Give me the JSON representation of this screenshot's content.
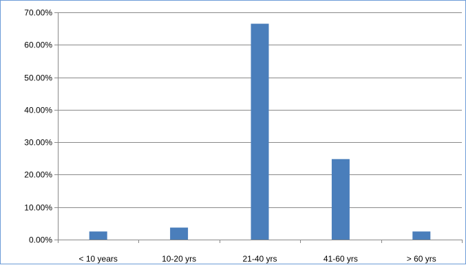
{
  "chart_data": {
    "type": "bar",
    "categories": [
      "< 10 years",
      "10-20 yrs",
      "21-40 yrs",
      "41-60 yrs",
      "> 60 yrs"
    ],
    "series": [
      {
        "values": [
          0.025,
          0.037,
          0.665,
          0.248,
          0.025
        ]
      }
    ],
    "ylim": [
      0,
      0.7
    ],
    "yticks": [
      "0.00%",
      "10.00%",
      "20.00%",
      "30.00%",
      "40.00%",
      "50.00%",
      "60.00%",
      "70.00%"
    ],
    "grid": true,
    "legend": "none",
    "colors": {
      "bar": "#4a7ebb",
      "grid": "#888888",
      "axis": "#888888",
      "border": "#6b9bd7"
    }
  }
}
